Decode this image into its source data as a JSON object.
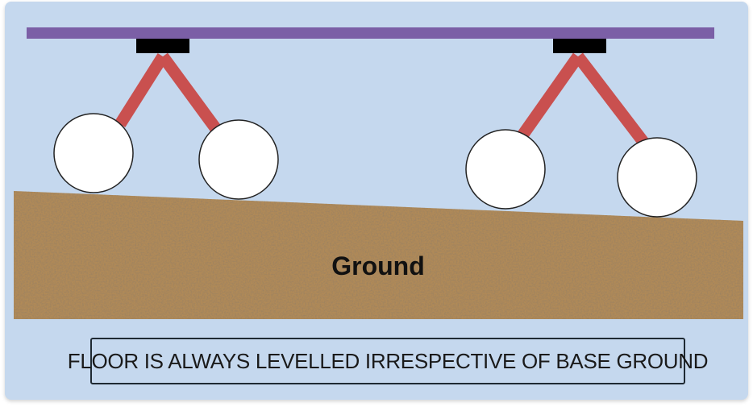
{
  "ground": {
    "label": "Ground"
  },
  "caption": {
    "text": "FLOOR IS ALWAYS LEVELLED IRRESPECTIVE OF BASE GROUND"
  },
  "colors": {
    "background": "#c5d8ee",
    "floor": "#7b5fa6",
    "mount": "#000000",
    "leg": "#c9504f",
    "wheel": "#ffffff",
    "ground": "#b08a58"
  }
}
